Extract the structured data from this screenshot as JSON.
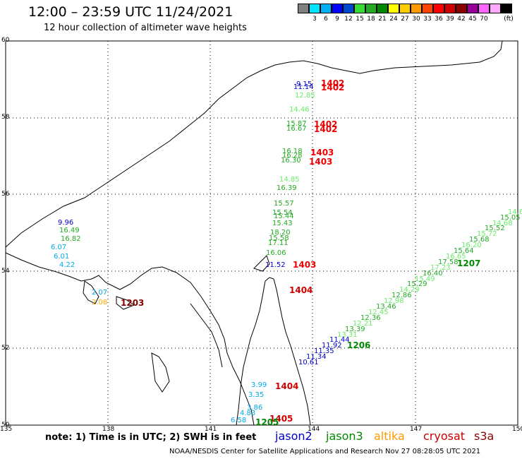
{
  "header": {
    "title": "12:00 – 23:59 UTC 11/24/2021",
    "subtitle": "12 hour collection of altimeter wave heights"
  },
  "colorbar": {
    "unit": "(ft)",
    "colors": [
      "#808080",
      "#00e5ff",
      "#00b0f0",
      "#0000ff",
      "#0048d0",
      "#33dd33",
      "#22aa22",
      "#008800",
      "#ffff00",
      "#ffcc00",
      "#ff9900",
      "#ff4400",
      "#ff0000",
      "#cc0000",
      "#880000",
      "#990099",
      "#ff66ff",
      "#ffaaff",
      "#000000"
    ],
    "labels": [
      "3",
      "6",
      "9",
      "12",
      "15",
      "18",
      "21",
      "24",
      "27",
      "30",
      "33",
      "36",
      "39",
      "42",
      "45",
      "70"
    ]
  },
  "axes": {
    "lon_ticks": [
      "135",
      "138",
      "141",
      "144",
      "147",
      "150"
    ],
    "lat_ticks": [
      "50",
      "52",
      "54",
      "56",
      "58",
      "60"
    ]
  },
  "observations": {
    "track_north": [
      {
        "t": "9.15",
        "c": "#0000cc"
      },
      {
        "t": "11.14",
        "c": "#0000cc"
      },
      {
        "t": "12.85",
        "c": "#66ee66"
      },
      {
        "t": "14.46",
        "c": "#66ee66"
      },
      {
        "t": "15.87",
        "c": "#22aa22"
      },
      {
        "t": "16.67",
        "c": "#22aa22"
      },
      {
        "t": "16.18",
        "c": "#22aa22"
      },
      {
        "t": "16.28",
        "c": "#22aa22"
      },
      {
        "t": "16.30",
        "c": "#22aa22"
      },
      {
        "t": "14.85",
        "c": "#66ee66"
      },
      {
        "t": "16.39",
        "c": "#22aa22"
      },
      {
        "t": "15.57",
        "c": "#22aa22"
      },
      {
        "t": "15.54",
        "c": "#22aa22"
      },
      {
        "t": "15.44",
        "c": "#22aa22"
      },
      {
        "t": "15.43",
        "c": "#22aa22"
      },
      {
        "t": "18.20",
        "c": "#22aa22"
      },
      {
        "t": "15.58",
        "c": "#22aa22"
      },
      {
        "t": "17.11",
        "c": "#22aa22"
      },
      {
        "t": "16.06",
        "c": "#22aa22"
      },
      {
        "t": "11.52",
        "c": "#0000cc"
      }
    ],
    "track_times_red": [
      "1402",
      "1402",
      "1402",
      "1402",
      "1403",
      "1403",
      "1403",
      "1404",
      "1404",
      "1405"
    ],
    "track_west": [
      {
        "t": "9.96",
        "c": "#0000cc"
      },
      {
        "t": "16.49",
        "c": "#22aa22"
      },
      {
        "t": "16.82",
        "c": "#22aa22"
      },
      {
        "t": "6.07",
        "c": "#00aaee"
      },
      {
        "t": "6.01",
        "c": "#00aaee"
      },
      {
        "t": "4.22",
        "c": "#00aaee"
      },
      {
        "t": "2.07",
        "c": "#00aaee"
      },
      {
        "t": "2.08",
        "c": "#ffaa00"
      }
    ],
    "track_west_time": "1203",
    "track_diag": [
      "10.61",
      "11.34",
      "11.35",
      "11.92",
      "11.44",
      "13.31",
      "13.39",
      "12.21",
      "12.36",
      "12.45",
      "13.46",
      "12.98",
      "12.86",
      "14.29",
      "15.29",
      "15.49",
      "16.40",
      "17.23",
      "17.58",
      "16.65",
      "15.64",
      "16.20",
      "15.68",
      "15.72",
      "15.52",
      "14.68",
      "15.05",
      "14.6"
    ],
    "track_diag_times": [
      "1206",
      "1207"
    ],
    "track_south": [
      {
        "t": "3.99",
        "c": "#00aaee"
      },
      {
        "t": "3.35",
        "c": "#00aaee"
      },
      {
        "t": "3.86",
        "c": "#00aaee"
      },
      {
        "t": "4.83",
        "c": "#00aaee"
      },
      {
        "t": "6.58",
        "c": "#00aaee"
      }
    ],
    "track_south_time": "1205"
  },
  "footer": {
    "note": "note: 1) Time is in UTC; 2) SWH is in feet",
    "legend": [
      {
        "name": "jason2",
        "color": "#0000cc"
      },
      {
        "name": "jason3",
        "color": "#008800"
      },
      {
        "name": "altika",
        "color": "#ff9900"
      },
      {
        "name": "cryosat",
        "color": "#cc0000"
      },
      {
        "name": "s3a",
        "color": "#880000"
      }
    ],
    "credit": "NOAA/NESDIS Center for Satellite Applications and Research   Nov 27 08:28:05 UTC 2021"
  }
}
